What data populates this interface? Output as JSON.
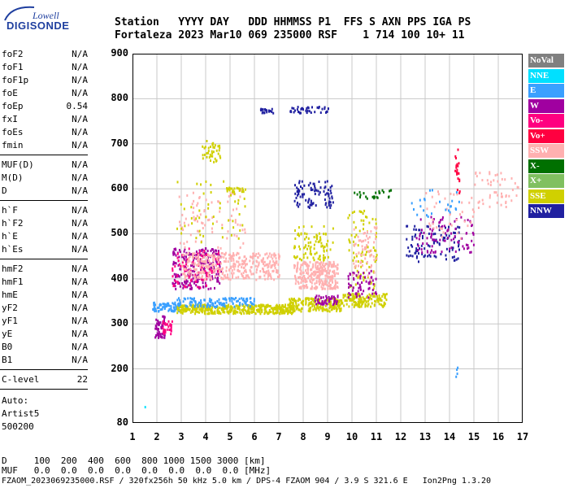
{
  "logo": {
    "top": "Lowell",
    "main": "DIGISONDE"
  },
  "header": {
    "line1": "Station   YYYY DAY   DDD HHMMSS P1  FFS S AXN PPS IGA PS",
    "line2": "Fortaleza 2023 Mar10 069 235000 RSF    1 714 100 10+ 11"
  },
  "params_group1": [
    {
      "name": "foF2",
      "value": "N/A"
    },
    {
      "name": "foF1",
      "value": "N/A"
    },
    {
      "name": "foF1p",
      "value": "N/A"
    },
    {
      "name": "foE",
      "value": "N/A"
    },
    {
      "name": "foEp",
      "value": "0.54"
    },
    {
      "name": "fxI",
      "value": "N/A"
    },
    {
      "name": "foEs",
      "value": "N/A"
    },
    {
      "name": "fmin",
      "value": "N/A"
    }
  ],
  "params_group2": [
    {
      "name": "MUF(D)",
      "value": "N/A"
    },
    {
      "name": "M(D)",
      "value": "N/A"
    },
    {
      "name": "D",
      "value": "N/A"
    }
  ],
  "params_group3": [
    {
      "name": "h`F",
      "value": "N/A"
    },
    {
      "name": "h`F2",
      "value": "N/A"
    },
    {
      "name": "h`E",
      "value": "N/A"
    },
    {
      "name": "h`Es",
      "value": "N/A"
    }
  ],
  "params_group4": [
    {
      "name": "hmF2",
      "value": "N/A"
    },
    {
      "name": "hmF1",
      "value": "N/A"
    },
    {
      "name": "hmE",
      "value": "N/A"
    },
    {
      "name": "yF2",
      "value": "N/A"
    },
    {
      "name": "yF1",
      "value": "N/A"
    },
    {
      "name": "yE",
      "value": "N/A"
    },
    {
      "name": "B0",
      "value": "N/A"
    },
    {
      "name": "B1",
      "value": "N/A"
    }
  ],
  "clevel": {
    "name": "C-level",
    "value": "22"
  },
  "auto": {
    "line1": "Auto:",
    "line2": "Artist5",
    "line3": "500200"
  },
  "legend": [
    {
      "label": "NoVal",
      "color": "#808080"
    },
    {
      "label": "NNE",
      "color": "#00e0ff"
    },
    {
      "label": "E",
      "color": "#3aa0ff"
    },
    {
      "label": "W",
      "color": "#a000a0"
    },
    {
      "label": "Vo-",
      "color": "#ff0080"
    },
    {
      "label": "Vo+",
      "color": "#ff0040"
    },
    {
      "label": "SSW",
      "color": "#ffb0b0"
    },
    {
      "label": "X-",
      "color": "#007000"
    },
    {
      "label": "X+",
      "color": "#80c060"
    },
    {
      "label": "SSE",
      "color": "#d0d000"
    },
    {
      "label": "NNW",
      "color": "#2020a0"
    }
  ],
  "chart_data": {
    "type": "scatter",
    "xlim": [
      1,
      17
    ],
    "ylim": [
      80,
      900
    ],
    "xticks": [
      "1",
      "2",
      "3",
      "4",
      "5",
      "6",
      "7",
      "8",
      "9",
      "10",
      "11",
      "12",
      "13",
      "14",
      "15",
      "16",
      "17"
    ],
    "yticks": [
      "80",
      "200",
      "300",
      "400",
      "500",
      "600",
      "700",
      "800",
      "900"
    ],
    "xlabel": "",
    "ylabel": "",
    "grid": true,
    "clusters": [
      {
        "x0": 1.9,
        "x1": 2.3,
        "y0": 270,
        "y1": 320,
        "color": "#a000a0",
        "n": 60
      },
      {
        "x0": 2.2,
        "x1": 2.6,
        "y0": 280,
        "y1": 310,
        "color": "#ff0080",
        "n": 30
      },
      {
        "x0": 1.8,
        "x1": 3.0,
        "y0": 330,
        "y1": 350,
        "color": "#3aa0ff",
        "n": 80
      },
      {
        "x0": 2.8,
        "x1": 6.0,
        "y0": 325,
        "y1": 345,
        "color": "#d0d000",
        "n": 260
      },
      {
        "x0": 2.8,
        "x1": 6.0,
        "y0": 340,
        "y1": 360,
        "color": "#3aa0ff",
        "n": 120
      },
      {
        "x0": 2.6,
        "x1": 4.6,
        "y0": 380,
        "y1": 470,
        "color": "#a000a0",
        "n": 230
      },
      {
        "x0": 2.6,
        "x1": 4.6,
        "y0": 380,
        "y1": 470,
        "color": "#ff0080",
        "n": 80
      },
      {
        "x0": 3.0,
        "x1": 6.0,
        "y0": 400,
        "y1": 460,
        "color": "#ffb0b0",
        "n": 260
      },
      {
        "x0": 2.8,
        "x1": 5.6,
        "y0": 470,
        "y1": 600,
        "color": "#ffb0b0",
        "n": 80
      },
      {
        "x0": 2.8,
        "x1": 5.6,
        "y0": 480,
        "y1": 620,
        "color": "#d0d000",
        "n": 50
      },
      {
        "x0": 3.8,
        "x1": 4.6,
        "y0": 660,
        "y1": 710,
        "color": "#d0d000",
        "n": 40
      },
      {
        "x0": 4.8,
        "x1": 5.6,
        "y0": 595,
        "y1": 605,
        "color": "#d0d000",
        "n": 25
      },
      {
        "x0": 6.0,
        "x1": 7.6,
        "y0": 325,
        "y1": 345,
        "color": "#d0d000",
        "n": 150
      },
      {
        "x0": 6.0,
        "x1": 7.0,
        "y0": 400,
        "y1": 460,
        "color": "#ffb0b0",
        "n": 100
      },
      {
        "x0": 6.2,
        "x1": 6.8,
        "y0": 770,
        "y1": 780,
        "color": "#2020a0",
        "n": 20
      },
      {
        "x0": 7.4,
        "x1": 9.0,
        "y0": 770,
        "y1": 785,
        "color": "#2020a0",
        "n": 40
      },
      {
        "x0": 7.6,
        "x1": 9.4,
        "y0": 380,
        "y1": 440,
        "color": "#ffb0b0",
        "n": 280
      },
      {
        "x0": 7.6,
        "x1": 9.2,
        "y0": 440,
        "y1": 520,
        "color": "#d0d000",
        "n": 90
      },
      {
        "x0": 7.6,
        "x1": 9.2,
        "y0": 560,
        "y1": 620,
        "color": "#2020a0",
        "n": 90
      },
      {
        "x0": 7.4,
        "x1": 9.6,
        "y0": 330,
        "y1": 360,
        "color": "#d0d000",
        "n": 180
      },
      {
        "x0": 8.4,
        "x1": 9.4,
        "y0": 345,
        "y1": 365,
        "color": "#a000a0",
        "n": 50
      },
      {
        "x0": 9.6,
        "x1": 11.4,
        "y0": 340,
        "y1": 370,
        "color": "#d0d000",
        "n": 140
      },
      {
        "x0": 9.8,
        "x1": 11.0,
        "y0": 380,
        "y1": 560,
        "color": "#d0d000",
        "n": 90
      },
      {
        "x0": 9.8,
        "x1": 11.0,
        "y0": 360,
        "y1": 420,
        "color": "#a000a0",
        "n": 60
      },
      {
        "x0": 10.0,
        "x1": 11.0,
        "y0": 400,
        "y1": 520,
        "color": "#ffb0b0",
        "n": 60
      },
      {
        "x0": 10.0,
        "x1": 11.6,
        "y0": 580,
        "y1": 600,
        "color": "#007000",
        "n": 25
      },
      {
        "x0": 12.2,
        "x1": 14.4,
        "y0": 440,
        "y1": 520,
        "color": "#2020a0",
        "n": 100
      },
      {
        "x0": 12.6,
        "x1": 15.0,
        "y0": 460,
        "y1": 540,
        "color": "#a000a0",
        "n": 90
      },
      {
        "x0": 13.0,
        "x1": 15.0,
        "y0": 490,
        "y1": 600,
        "color": "#ffb0b0",
        "n": 40
      },
      {
        "x0": 14.2,
        "x1": 14.4,
        "y0": 590,
        "y1": 700,
        "color": "#ff0040",
        "n": 20
      },
      {
        "x0": 15.0,
        "x1": 16.8,
        "y0": 560,
        "y1": 640,
        "color": "#ffb0b0",
        "n": 50
      },
      {
        "x0": 12.4,
        "x1": 14.4,
        "y0": 540,
        "y1": 600,
        "color": "#3aa0ff",
        "n": 25
      },
      {
        "x0": 14.2,
        "x1": 14.35,
        "y0": 185,
        "y1": 215,
        "color": "#3aa0ff",
        "n": 4
      },
      {
        "x0": 1.4,
        "x1": 1.5,
        "y0": 115,
        "y1": 118,
        "color": "#00e0ff",
        "n": 1
      }
    ]
  },
  "bottom": {
    "line1": "D     100  200  400  600  800 1000 1500 3000 [km]",
    "line2": "MUF   0.0  0.0  0.0  0.0  0.0  0.0  0.0  0.0 [MHz]",
    "line3": "FZAOM_2023069235000.RSF / 320fx256h 50 kHz 5.0 km / DPS-4 FZAOM 904 / 3.9 S 321.6 E   Ion2Png 1.3.20"
  }
}
